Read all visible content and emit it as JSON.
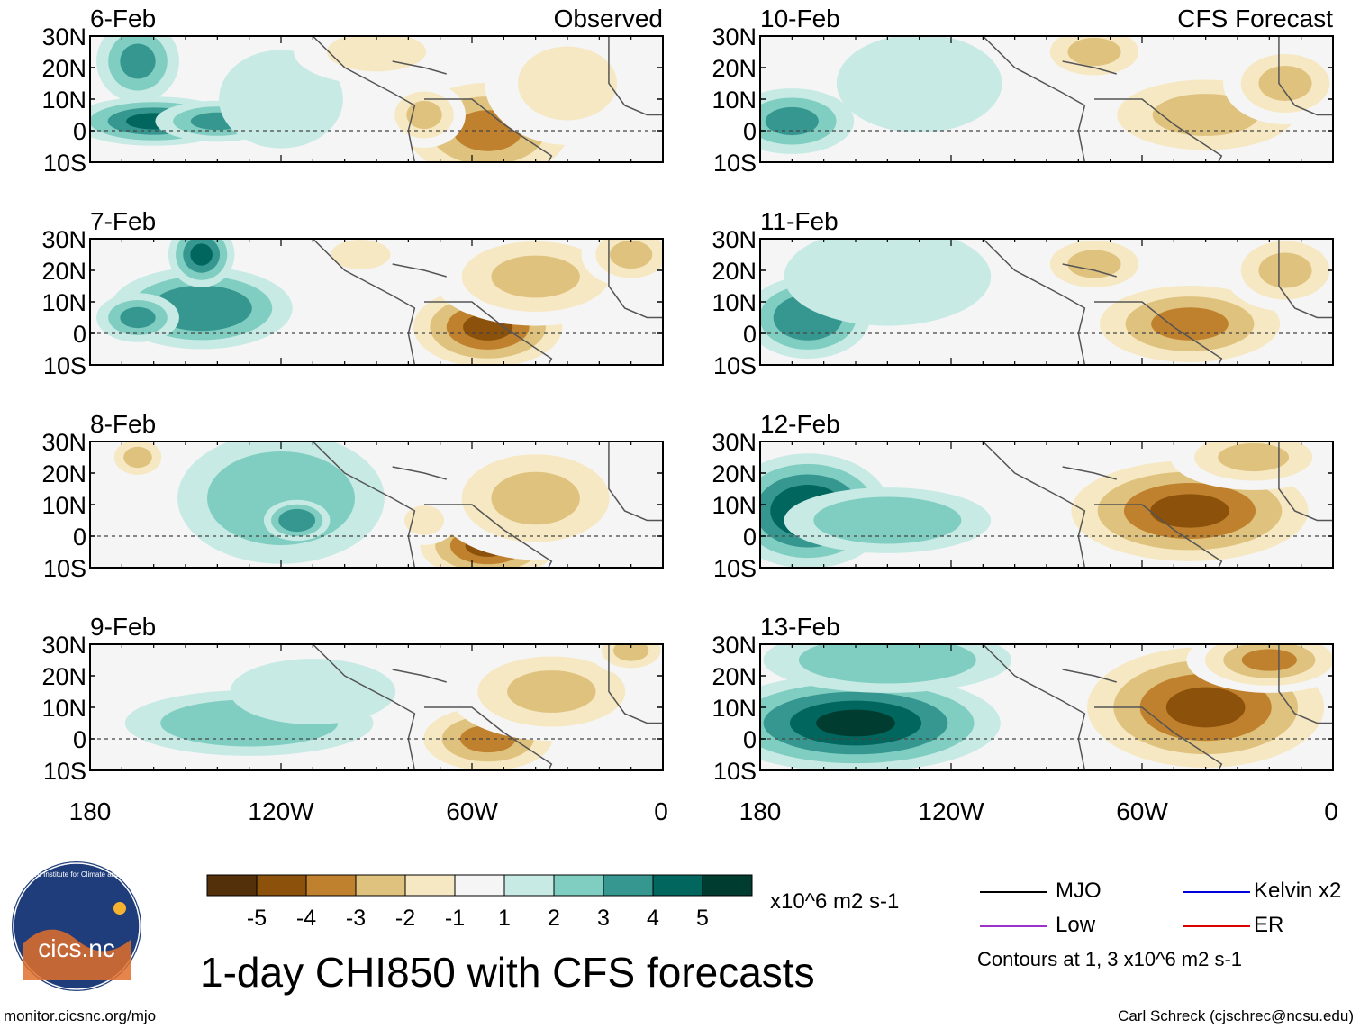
{
  "figure": {
    "title": "1-day CHI850 with CFS forecasts",
    "url": "monitor.cicsnc.org/mjo",
    "credit": "Carl Schreck (cjschrec@ncsu.edu)",
    "logo": {
      "text": "cics.nc",
      "ring_text": "Cooperative Institute for Climate and Satellites"
    }
  },
  "columns": {
    "observed_label": "Observed",
    "forecast_label": "CFS Forecast"
  },
  "lat_labels": [
    "30N",
    "20N",
    "10N",
    "0",
    "10S"
  ],
  "lon_labels": [
    "180",
    "120W",
    "60W",
    "0"
  ],
  "colorbar": {
    "unit": "x10^6 m2 s-1",
    "labels": [
      "-5",
      "-4",
      "-3",
      "-2",
      "-1",
      "1",
      "2",
      "3",
      "4",
      "5"
    ],
    "colors": [
      "#54300a",
      "#8c510a",
      "#bf812d",
      "#dfc27d",
      "#f6e8c3",
      "#f5f5f5",
      "#c7eae5",
      "#80cdc1",
      "#35978f",
      "#01665e",
      "#003c30"
    ]
  },
  "legend": {
    "items": [
      {
        "label": "MJO",
        "color": "#000000"
      },
      {
        "label": "Kelvin x2",
        "color": "#0000dd"
      },
      {
        "label": "Low",
        "color": "#9933cc"
      },
      {
        "label": "ER",
        "color": "#dd0000"
      }
    ],
    "note": "Contours at 1, 3 x10^6 m2 s-1"
  },
  "chart_data": {
    "type": "heatmap",
    "variable": "CHI850 anomaly",
    "unit": "x10^6 m2 s-1",
    "lat_range": [
      -10,
      30
    ],
    "lon_range": [
      -180,
      0
    ],
    "contour_levels": [
      1,
      3
    ],
    "panels": [
      {
        "date": "6-Feb",
        "source": "Observed",
        "blobs": [
          {
            "lon": -160,
            "lat": 3,
            "rlon": 20,
            "rlat": 6,
            "v": 4
          },
          {
            "lon": -140,
            "lat": 3,
            "rlon": 15,
            "rlat": 5,
            "v": 3
          },
          {
            "lon": -165,
            "lat": 22,
            "rlon": 10,
            "rlat": 10,
            "v": 3
          },
          {
            "lon": -120,
            "lat": 10,
            "rlon": 15,
            "rlat": 12,
            "v": 1.5
          },
          {
            "lon": -55,
            "lat": 0,
            "rlon": 25,
            "rlat": 15,
            "v": -4
          },
          {
            "lon": -75,
            "lat": 5,
            "rlon": 10,
            "rlat": 8,
            "v": -2.5
          },
          {
            "lon": -30,
            "lat": 15,
            "rlon": 20,
            "rlat": 15,
            "v": -2
          },
          {
            "lon": -90,
            "lat": 25,
            "rlon": 20,
            "rlat": 8,
            "v": -1.5
          }
        ]
      },
      {
        "date": "7-Feb",
        "source": "Observed",
        "blobs": [
          {
            "lon": -145,
            "lat": 8,
            "rlon": 22,
            "rlat": 10,
            "v": 3.5
          },
          {
            "lon": -145,
            "lat": 25,
            "rlon": 8,
            "rlat": 8,
            "v": 4
          },
          {
            "lon": -165,
            "lat": 5,
            "rlon": 10,
            "rlat": 6,
            "v": 3
          },
          {
            "lon": -55,
            "lat": 2,
            "rlon": 22,
            "rlat": 12,
            "v": -4.5
          },
          {
            "lon": -40,
            "lat": 18,
            "rlon": 25,
            "rlat": 12,
            "v": -2.5
          },
          {
            "lon": -95,
            "lat": 25,
            "rlon": 12,
            "rlat": 6,
            "v": -1.5
          },
          {
            "lon": -10,
            "lat": 25,
            "rlon": 12,
            "rlat": 8,
            "v": -3
          }
        ]
      },
      {
        "date": "8-Feb",
        "source": "Observed",
        "blobs": [
          {
            "lon": -120,
            "lat": 12,
            "rlon": 25,
            "rlat": 16,
            "v": 2.5
          },
          {
            "lon": -115,
            "lat": 5,
            "rlon": 8,
            "rlat": 5,
            "v": 3.5
          },
          {
            "lon": -165,
            "lat": 25,
            "rlon": 8,
            "rlat": 6,
            "v": -2.5
          },
          {
            "lon": -55,
            "lat": -3,
            "rlon": 20,
            "rlat": 10,
            "v": -4.5
          },
          {
            "lon": -40,
            "lat": 12,
            "rlon": 25,
            "rlat": 15,
            "v": -2.5
          },
          {
            "lon": -75,
            "lat": 5,
            "rlon": 8,
            "rlat": 6,
            "v": -1.5
          }
        ]
      },
      {
        "date": "9-Feb",
        "source": "Observed",
        "blobs": [
          {
            "lon": -130,
            "lat": 5,
            "rlon": 30,
            "rlat": 8,
            "v": 2.5
          },
          {
            "lon": -110,
            "lat": 15,
            "rlon": 20,
            "rlat": 8,
            "v": 1.5
          },
          {
            "lon": -55,
            "lat": 0,
            "rlon": 20,
            "rlat": 10,
            "v": -4
          },
          {
            "lon": -35,
            "lat": 15,
            "rlon": 25,
            "rlat": 12,
            "v": -2.5
          },
          {
            "lon": -10,
            "lat": 28,
            "rlon": 10,
            "rlat": 6,
            "v": -3
          }
        ]
      },
      {
        "date": "10-Feb",
        "source": "CFS Forecast",
        "blobs": [
          {
            "lon": -170,
            "lat": 3,
            "rlon": 15,
            "rlat": 8,
            "v": 3
          },
          {
            "lon": -130,
            "lat": 15,
            "rlon": 20,
            "rlat": 12,
            "v": 1.5
          },
          {
            "lon": -40,
            "lat": 5,
            "rlon": 30,
            "rlat": 12,
            "v": -2.5
          },
          {
            "lon": -75,
            "lat": 25,
            "rlon": 15,
            "rlat": 8,
            "v": -2.5
          },
          {
            "lon": -15,
            "lat": 15,
            "rlon": 15,
            "rlat": 10,
            "v": -3
          }
        ]
      },
      {
        "date": "11-Feb",
        "source": "CFS Forecast",
        "blobs": [
          {
            "lon": -165,
            "lat": 5,
            "rlon": 15,
            "rlat": 10,
            "v": 3.5
          },
          {
            "lon": -140,
            "lat": 18,
            "rlon": 25,
            "rlat": 12,
            "v": 1.5
          },
          {
            "lon": -45,
            "lat": 3,
            "rlon": 28,
            "rlat": 12,
            "v": -4
          },
          {
            "lon": -75,
            "lat": 22,
            "rlon": 15,
            "rlat": 8,
            "v": -2.5
          },
          {
            "lon": -15,
            "lat": 20,
            "rlon": 15,
            "rlat": 10,
            "v": -3
          }
        ]
      },
      {
        "date": "12-Feb",
        "source": "CFS Forecast",
        "blobs": [
          {
            "lon": -165,
            "lat": 8,
            "rlon": 20,
            "rlat": 14,
            "v": 4.5
          },
          {
            "lon": -140,
            "lat": 5,
            "rlon": 25,
            "rlat": 8,
            "v": 2.5
          },
          {
            "lon": -45,
            "lat": 8,
            "rlon": 35,
            "rlat": 15,
            "v": -4.5
          },
          {
            "lon": -25,
            "lat": 25,
            "rlon": 20,
            "rlat": 8,
            "v": -3
          }
        ]
      },
      {
        "date": "13-Feb",
        "source": "CFS Forecast",
        "blobs": [
          {
            "lon": -150,
            "lat": 5,
            "rlon": 35,
            "rlat": 12,
            "v": 5
          },
          {
            "lon": -140,
            "lat": 25,
            "rlon": 30,
            "rlat": 8,
            "v": 2.5
          },
          {
            "lon": -40,
            "lat": 10,
            "rlon": 35,
            "rlat": 18,
            "v": -5
          },
          {
            "lon": -20,
            "lat": 25,
            "rlon": 20,
            "rlat": 8,
            "v": -4
          }
        ]
      }
    ]
  }
}
